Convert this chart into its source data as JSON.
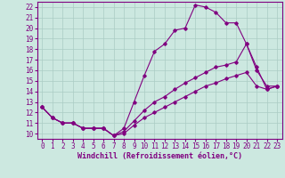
{
  "xlabel": "Windchill (Refroidissement éolien,°C)",
  "background_color": "#cce8e0",
  "line_color": "#800080",
  "grid_color": "#aaccC4",
  "xlim": [
    -0.5,
    23.5
  ],
  "ylim": [
    9.5,
    22.5
  ],
  "xticks": [
    0,
    1,
    2,
    3,
    4,
    5,
    6,
    7,
    8,
    9,
    10,
    11,
    12,
    13,
    14,
    15,
    16,
    17,
    18,
    19,
    20,
    21,
    22,
    23
  ],
  "yticks": [
    10,
    11,
    12,
    13,
    14,
    15,
    16,
    17,
    18,
    19,
    20,
    21,
    22
  ],
  "series1": [
    [
      0,
      12.5
    ],
    [
      1,
      11.5
    ],
    [
      2,
      11.0
    ],
    [
      3,
      11.0
    ],
    [
      4,
      10.5
    ],
    [
      5,
      10.5
    ],
    [
      6,
      10.5
    ],
    [
      7,
      9.8
    ],
    [
      8,
      10.5
    ],
    [
      9,
      13.0
    ],
    [
      10,
      15.5
    ],
    [
      11,
      17.8
    ],
    [
      12,
      18.5
    ],
    [
      13,
      19.8
    ],
    [
      14,
      20.0
    ],
    [
      15,
      22.2
    ],
    [
      16,
      22.0
    ],
    [
      17,
      21.5
    ],
    [
      18,
      20.5
    ],
    [
      19,
      20.5
    ],
    [
      20,
      18.5
    ],
    [
      21,
      16.0
    ],
    [
      22,
      14.5
    ],
    [
      23,
      14.5
    ]
  ],
  "series2": [
    [
      0,
      12.5
    ],
    [
      1,
      11.5
    ],
    [
      2,
      11.0
    ],
    [
      3,
      11.0
    ],
    [
      4,
      10.5
    ],
    [
      5,
      10.5
    ],
    [
      6,
      10.5
    ],
    [
      7,
      9.8
    ],
    [
      8,
      10.2
    ],
    [
      9,
      11.2
    ],
    [
      10,
      12.2
    ],
    [
      11,
      13.0
    ],
    [
      12,
      13.5
    ],
    [
      13,
      14.2
    ],
    [
      14,
      14.8
    ],
    [
      15,
      15.3
    ],
    [
      16,
      15.8
    ],
    [
      17,
      16.3
    ],
    [
      18,
      16.5
    ],
    [
      19,
      16.8
    ],
    [
      20,
      18.5
    ],
    [
      21,
      16.3
    ],
    [
      22,
      14.2
    ],
    [
      23,
      14.5
    ]
  ],
  "series3": [
    [
      0,
      12.5
    ],
    [
      1,
      11.5
    ],
    [
      2,
      11.0
    ],
    [
      3,
      11.0
    ],
    [
      4,
      10.5
    ],
    [
      5,
      10.5
    ],
    [
      6,
      10.5
    ],
    [
      7,
      9.8
    ],
    [
      8,
      10.0
    ],
    [
      9,
      10.8
    ],
    [
      10,
      11.5
    ],
    [
      11,
      12.0
    ],
    [
      12,
      12.5
    ],
    [
      13,
      13.0
    ],
    [
      14,
      13.5
    ],
    [
      15,
      14.0
    ],
    [
      16,
      14.5
    ],
    [
      17,
      14.8
    ],
    [
      18,
      15.2
    ],
    [
      19,
      15.5
    ],
    [
      20,
      15.8
    ],
    [
      21,
      14.5
    ],
    [
      22,
      14.2
    ],
    [
      23,
      14.5
    ]
  ],
  "tick_fontsize": 5.5,
  "xlabel_fontsize": 6.0
}
